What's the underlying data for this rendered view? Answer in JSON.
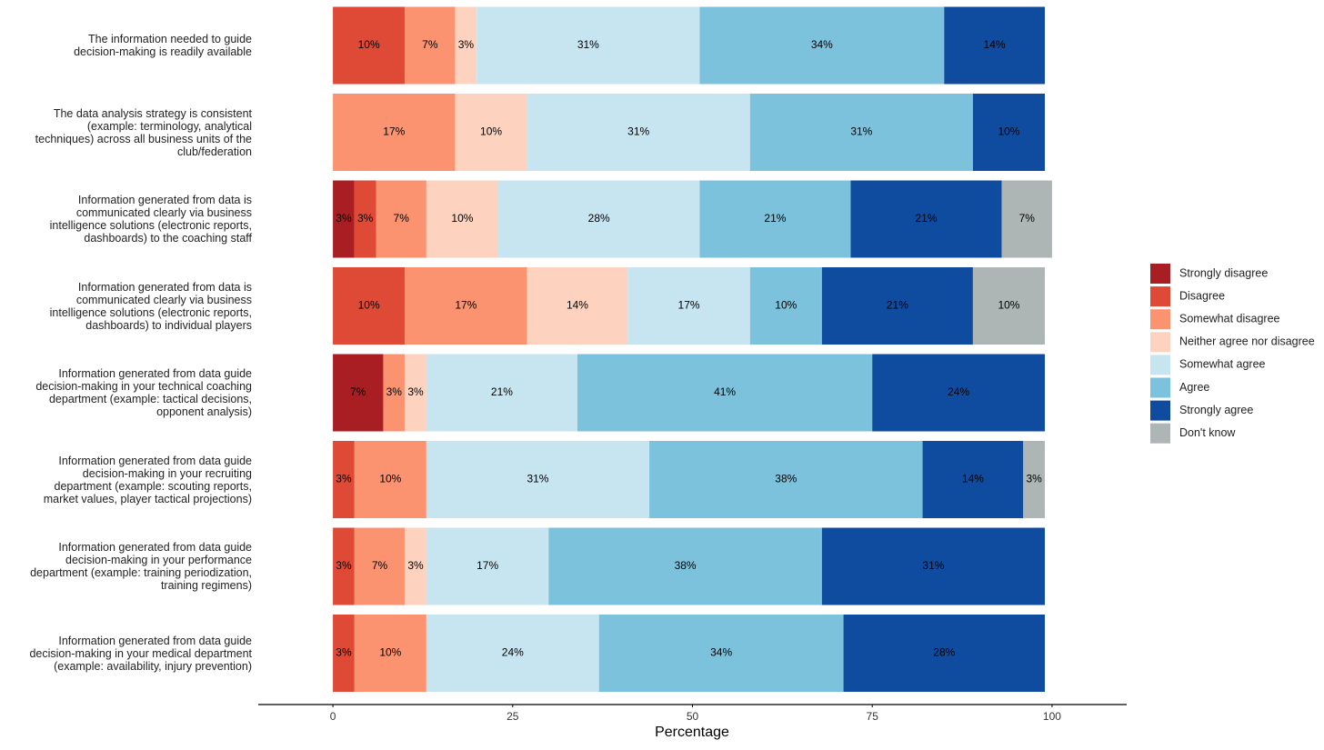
{
  "chart_data": {
    "type": "stacked-bar-horizontal",
    "x_label": "Percentage",
    "xlim": [
      -10,
      110
    ],
    "xticks": [
      0,
      25,
      50,
      75,
      100
    ],
    "legend": "right",
    "categories": [
      "The information needed to guide\ndecision-making is readily available",
      "The data analysis strategy is consistent\n(example: terminology, analytical\ntechniques) across all business units of the\nclub/federation",
      "Information generated from data is\ncommunicated clearly via business\nintelligence solutions (electronic reports,\ndashboards) to the coaching staff",
      "Information generated from data is\ncommunicated clearly via business\nintelligence solutions (electronic reports,\ndashboards) to individual players",
      "Information generated from data guide\ndecision-making in your technical coaching\ndepartment (example: tactical decisions,\nopponent analysis)",
      "Information generated from data guide\ndecision-making in your recruiting\ndepartment (example: scouting reports,\nmarket values, player tactical projections)",
      "Information generated from data guide\ndecision-making in your performance\ndepartment (example: training periodization,\ntraining regimens)",
      "Information generated from data guide\ndecision-making in your medical department\n(example: availability, injury prevention)"
    ],
    "series": [
      {
        "name": "Strongly disagree",
        "color": "#a81e22",
        "values": [
          null,
          null,
          3,
          null,
          7,
          null,
          null,
          null
        ],
        "value_labels": [
          null,
          null,
          "3%",
          null,
          "7%",
          null,
          null,
          null
        ]
      },
      {
        "name": "Disagree",
        "color": "#de4a35",
        "values": [
          10,
          null,
          3,
          10,
          null,
          3,
          3,
          3
        ],
        "value_labels": [
          "10%",
          null,
          "3%",
          "10%",
          null,
          "3%",
          "3%",
          "3%"
        ]
      },
      {
        "name": "Somewhat disagree",
        "color": "#fb9370",
        "values": [
          7,
          17,
          7,
          17,
          3,
          10,
          7,
          10
        ],
        "value_labels": [
          "7%",
          "17%",
          "7%",
          "17%",
          "3%",
          "10%",
          "7%",
          "10%"
        ]
      },
      {
        "name": "Neither agree nor disagree",
        "color": "#fdd3c0",
        "values": [
          3,
          10,
          10,
          14,
          3,
          null,
          3,
          null
        ],
        "value_labels": [
          "3%",
          "10%",
          "10%",
          "14%",
          "3%",
          null,
          "3%",
          null
        ]
      },
      {
        "name": "Somewhat agree",
        "color": "#c7e5f0",
        "values": [
          31,
          31,
          28,
          17,
          21,
          31,
          17,
          24
        ],
        "value_labels": [
          "31%",
          "31%",
          "28%",
          "17%",
          "21%",
          "31%",
          "17%",
          "24%"
        ]
      },
      {
        "name": "Agree",
        "color": "#7cc2dc",
        "values": [
          34,
          31,
          21,
          10,
          41,
          38,
          38,
          34
        ],
        "value_labels": [
          "34%",
          "31%",
          "21%",
          "10%",
          "41%",
          "38%",
          "38%",
          "34%"
        ]
      },
      {
        "name": "Strongly agree",
        "color": "#0f4ca0",
        "values": [
          14,
          10,
          21,
          21,
          24,
          14,
          31,
          28
        ],
        "value_labels": [
          "14%",
          "10%",
          "21%",
          "21%",
          "24%",
          "14%",
          "31%",
          "28%"
        ]
      },
      {
        "name": "Don't know",
        "color": "#adb5b5",
        "values": [
          null,
          null,
          7,
          10,
          null,
          3,
          null,
          null
        ],
        "value_labels": [
          null,
          null,
          "7%",
          "10%",
          null,
          "3%",
          null,
          null
        ]
      }
    ]
  }
}
